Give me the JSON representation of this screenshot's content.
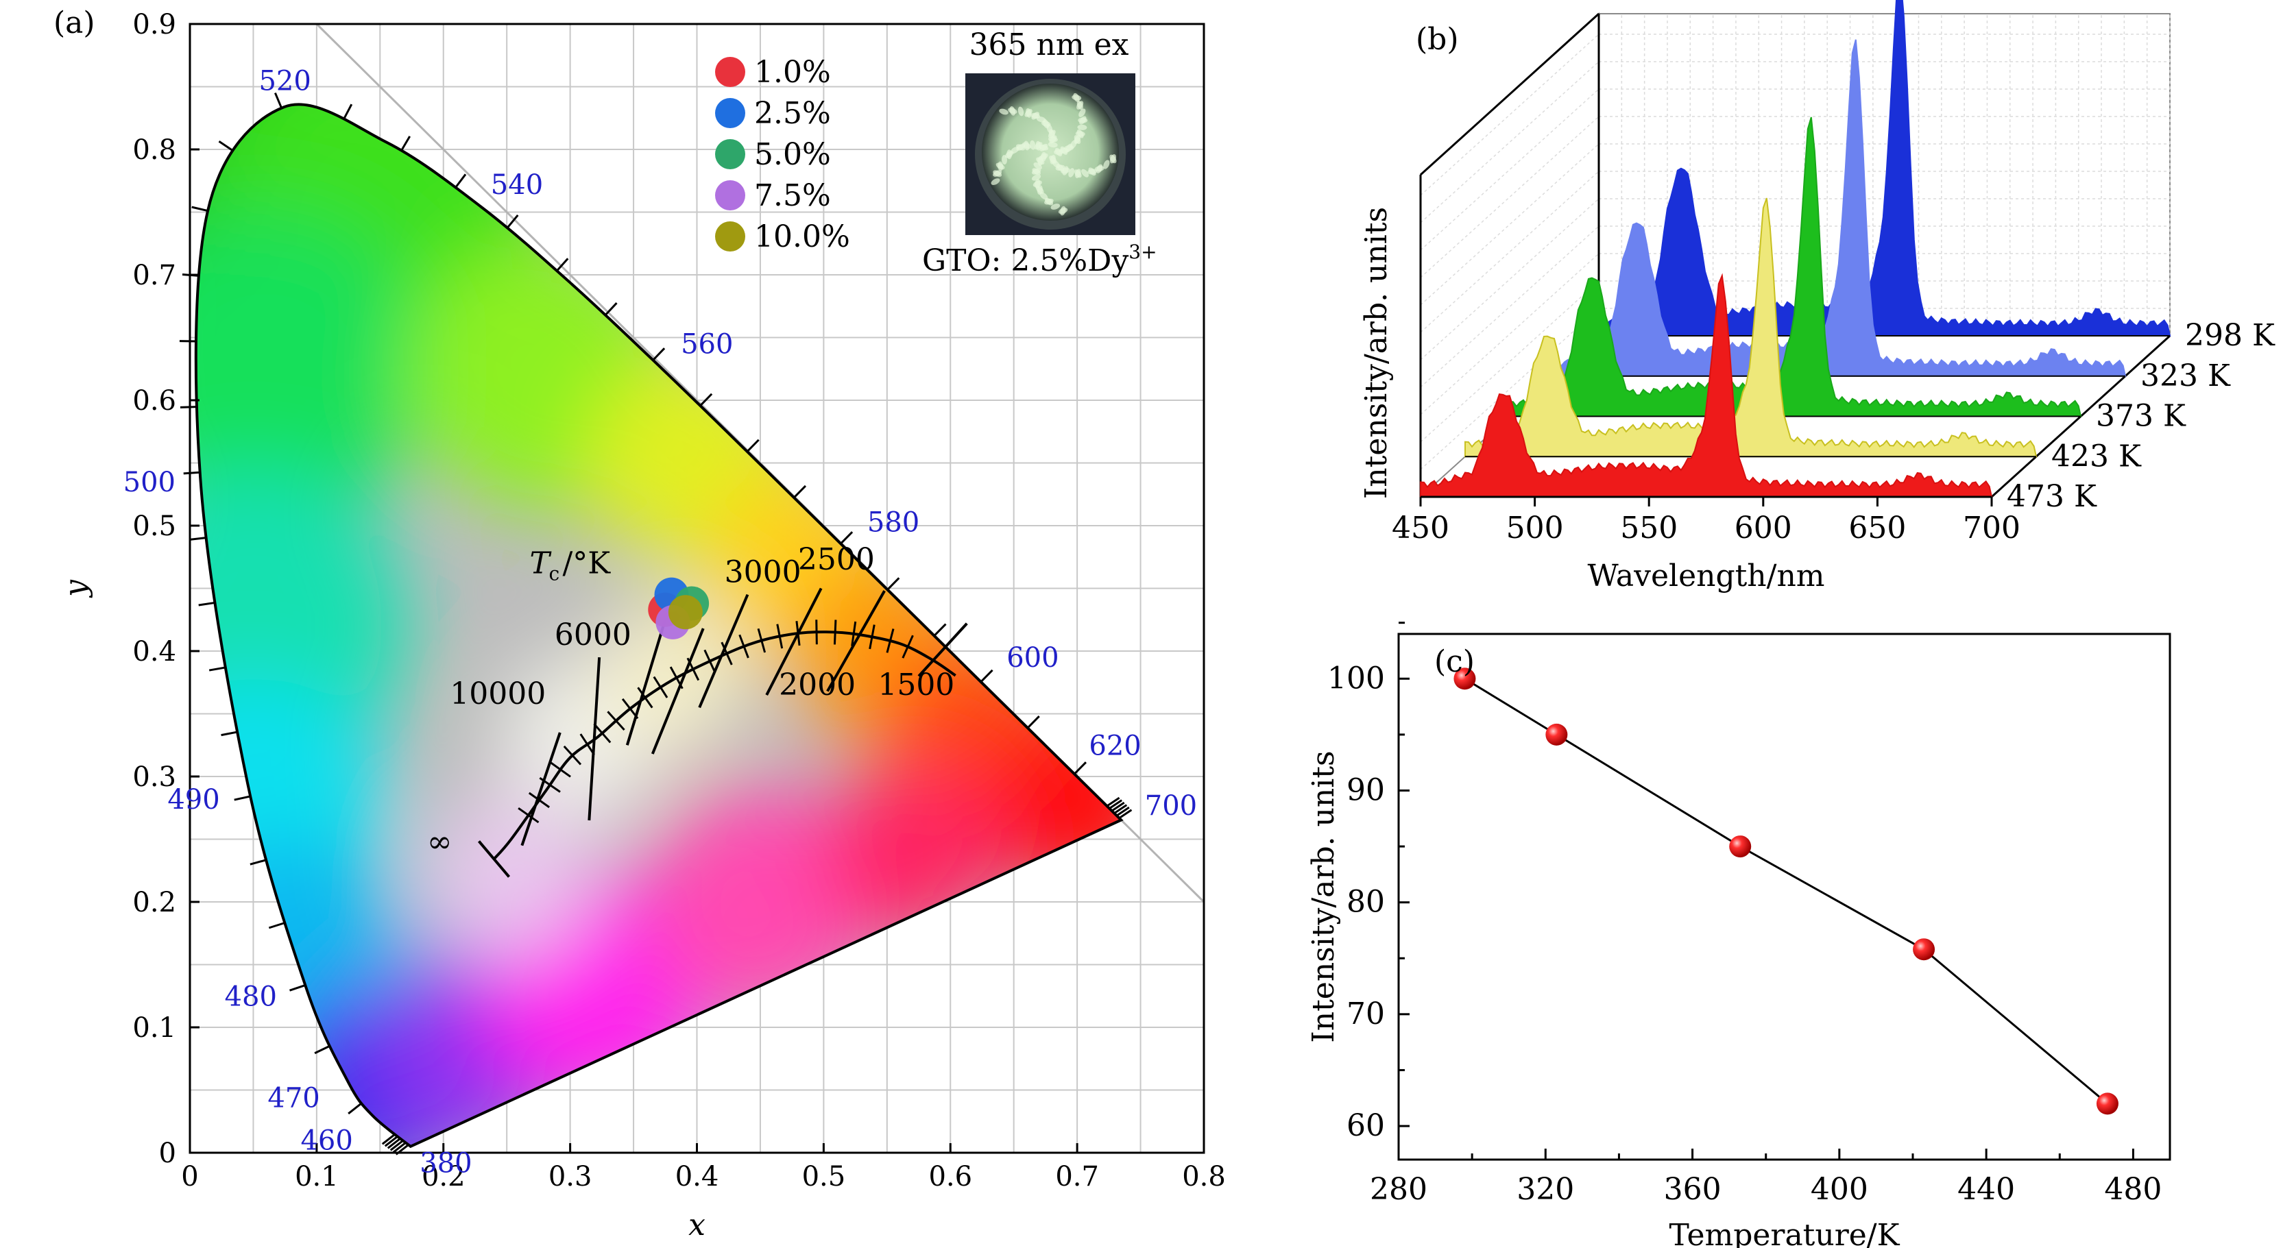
{
  "chart_data": [
    {
      "panel": "(a)",
      "type": "scatter",
      "xlabel": "x",
      "ylabel": "y",
      "xlim": [
        0,
        0.8
      ],
      "ylim": [
        0,
        0.9
      ],
      "x_ticks": [
        "0",
        "0.1",
        "0.2",
        "0.3",
        "0.4",
        "0.5",
        "0.6",
        "0.7",
        "0.8"
      ],
      "y_ticks": [
        "0",
        "0.1",
        "0.2",
        "0.3",
        "0.4",
        "0.5",
        "0.6",
        "0.7",
        "0.8",
        "0.9"
      ],
      "grid": true,
      "legend_position": "top-right",
      "locus_points": [
        {
          "nm": 380,
          "x": 0.1741,
          "y": 0.005
        },
        {
          "nm": 460,
          "x": 0.144,
          "y": 0.0297
        },
        {
          "nm": 470,
          "x": 0.1241,
          "y": 0.0578
        },
        {
          "nm": 480,
          "x": 0.0913,
          "y": 0.1327
        },
        {
          "nm": 490,
          "x": 0.0454,
          "y": 0.295
        },
        {
          "nm": 500,
          "x": 0.0082,
          "y": 0.5384
        },
        {
          "nm": 510,
          "x": 0.0139,
          "y": 0.7502
        },
        {
          "nm": 520,
          "x": 0.0743,
          "y": 0.8338
        },
        {
          "nm": 530,
          "x": 0.1547,
          "y": 0.8059
        },
        {
          "nm": 540,
          "x": 0.2296,
          "y": 0.7543
        },
        {
          "nm": 550,
          "x": 0.3016,
          "y": 0.6923
        },
        {
          "nm": 560,
          "x": 0.3731,
          "y": 0.6245
        },
        {
          "nm": 570,
          "x": 0.4441,
          "y": 0.5547
        },
        {
          "nm": 580,
          "x": 0.5125,
          "y": 0.4866
        },
        {
          "nm": 590,
          "x": 0.5752,
          "y": 0.4242
        },
        {
          "nm": 600,
          "x": 0.627,
          "y": 0.3725
        },
        {
          "nm": 620,
          "x": 0.6915,
          "y": 0.3083
        },
        {
          "nm": 700,
          "x": 0.7347,
          "y": 0.2653
        }
      ],
      "wavelength_labels": [
        {
          "text": "520",
          "x": 0.075,
          "y": 0.855
        },
        {
          "text": "540",
          "x": 0.258,
          "y": 0.772
        },
        {
          "text": "560",
          "x": 0.408,
          "y": 0.645
        },
        {
          "text": "580",
          "x": 0.555,
          "y": 0.503
        },
        {
          "text": "600",
          "x": 0.665,
          "y": 0.395
        },
        {
          "text": "620",
          "x": 0.73,
          "y": 0.325
        },
        {
          "text": "700",
          "x": 0.774,
          "y": 0.277
        },
        {
          "text": "500",
          "x": -0.032,
          "y": 0.535
        },
        {
          "text": "490",
          "x": 0.003,
          "y": 0.282
        },
        {
          "text": "480",
          "x": 0.048,
          "y": 0.125
        },
        {
          "text": "470",
          "x": 0.082,
          "y": 0.044
        },
        {
          "text": "460",
          "x": 0.108,
          "y": 0.01
        },
        {
          "text": "380",
          "x": 0.202,
          "y": -0.008
        }
      ],
      "planckian_locus": [
        [
          0.2399,
          0.2342
        ],
        [
          0.2531,
          0.2495
        ],
        [
          0.2806,
          0.2883
        ],
        [
          0.2999,
          0.315
        ],
        [
          0.3221,
          0.3318
        ],
        [
          0.3485,
          0.355
        ],
        [
          0.3805,
          0.3768
        ],
        [
          0.419,
          0.396
        ],
        [
          0.4476,
          0.4074
        ],
        [
          0.4769,
          0.4138
        ],
        [
          0.5019,
          0.4152
        ],
        [
          0.5267,
          0.4133
        ],
        [
          0.56,
          0.406
        ],
        [
          0.5856,
          0.3931
        ],
        [
          0.604,
          0.3805
        ]
      ],
      "tc_label": "T",
      "tc_label_sub": "c",
      "tc_label_suffix": "/°K",
      "cct_labels": [
        "10000",
        "6000",
        "3000",
        "2500",
        "2000",
        "1500",
        "∞"
      ],
      "series": [
        {
          "name": "1.0%",
          "color": "#e8323c",
          "x": 0.375,
          "y": 0.433
        },
        {
          "name": "2.5%",
          "color": "#1f6fe0",
          "x": 0.38,
          "y": 0.445
        },
        {
          "name": "5.0%",
          "color": "#2ea66a",
          "x": 0.396,
          "y": 0.438
        },
        {
          "name": "7.5%",
          "color": "#b070e0",
          "x": 0.381,
          "y": 0.423
        },
        {
          "name": "10.0%",
          "color": "#a09a10",
          "x": 0.391,
          "y": 0.431
        }
      ],
      "inset": {
        "title": "365 nm ex",
        "caption_main": "GTO: 2.5%Dy",
        "caption_sup": "3+"
      }
    },
    {
      "panel": "(b)",
      "type": "line",
      "xlabel": "Wavelength/nm",
      "ylabel": "Intensity/arb. units",
      "xlim": [
        450,
        700
      ],
      "x_ticks": [
        "450",
        "500",
        "550",
        "600",
        "650",
        "700"
      ],
      "peaks_nm": [
        487,
        582,
        668
      ],
      "series": [
        {
          "name": "298 K",
          "color": "#1a30d8",
          "fill": "#1a30d8",
          "amplitudes": [
            0.42,
            1.0,
            0.04
          ]
        },
        {
          "name": "323 K",
          "color": "#6c82f0",
          "fill": "#6c82f0",
          "amplitudes": [
            0.38,
            0.93,
            0.04
          ]
        },
        {
          "name": "373 K",
          "color": "#1aa81a",
          "fill": "#1dbe1d",
          "amplitudes": [
            0.34,
            0.82,
            0.03
          ]
        },
        {
          "name": "423 K",
          "color": "#c8c020",
          "fill": "#eee87a",
          "amplitudes": [
            0.29,
            0.7,
            0.03
          ]
        },
        {
          "name": "473 K",
          "color": "#d81010",
          "fill": "#ee1a1a",
          "amplitudes": [
            0.24,
            0.59,
            0.03
          ]
        }
      ]
    },
    {
      "panel": "(c)",
      "type": "line",
      "xlabel": "Temperature/K",
      "ylabel": "Intensity/arb. units",
      "xlim": [
        280,
        490
      ],
      "ylim": [
        57,
        104
      ],
      "x_ticks": [
        280,
        320,
        360,
        400,
        440,
        480
      ],
      "y_ticks": [
        60,
        70,
        80,
        90,
        100
      ],
      "x": [
        298,
        323,
        373,
        423,
        473
      ],
      "y": [
        100.0,
        95.0,
        85.0,
        75.8,
        62.0
      ]
    }
  ]
}
